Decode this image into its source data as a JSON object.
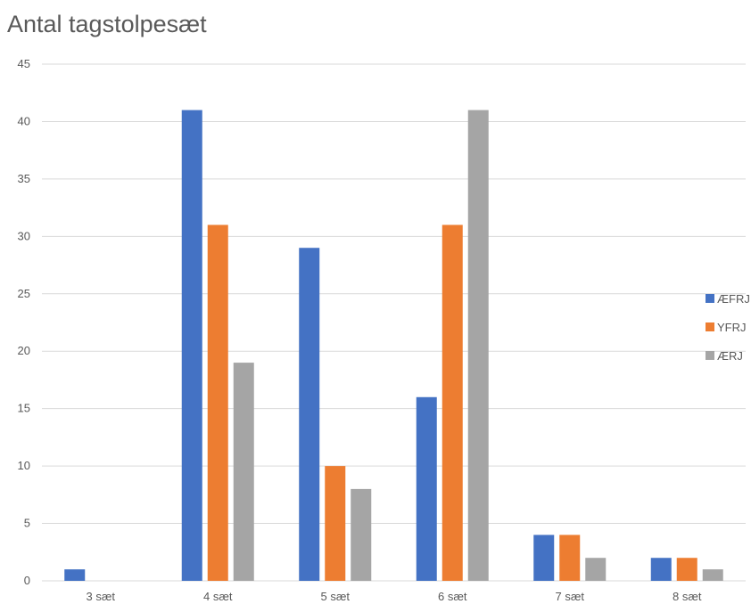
{
  "chart_data": {
    "type": "bar",
    "title": "Antal tagstolpesæt",
    "xlabel": "",
    "ylabel": "",
    "ylim": [
      0,
      45
    ],
    "yticks": [
      "0",
      "5",
      "10",
      "15",
      "20",
      "25",
      "30",
      "35",
      "40",
      "45"
    ],
    "categories": [
      "3 sæt",
      "4 sæt",
      "5 sæt",
      "6 sæt",
      "7 sæt",
      "8 sæt"
    ],
    "series": [
      {
        "name": "ÆFRJ",
        "color": "#4472c4",
        "values": [
          1,
          41,
          29,
          16,
          4,
          2
        ]
      },
      {
        "name": "YFRJ",
        "color": "#ed7d31",
        "values": [
          0,
          31,
          10,
          31,
          4,
          2
        ]
      },
      {
        "name": "ÆRJ",
        "color": "#a5a5a5",
        "values": [
          0,
          19,
          8,
          41,
          2,
          1
        ]
      }
    ],
    "grid": true,
    "legend_position": "right"
  }
}
